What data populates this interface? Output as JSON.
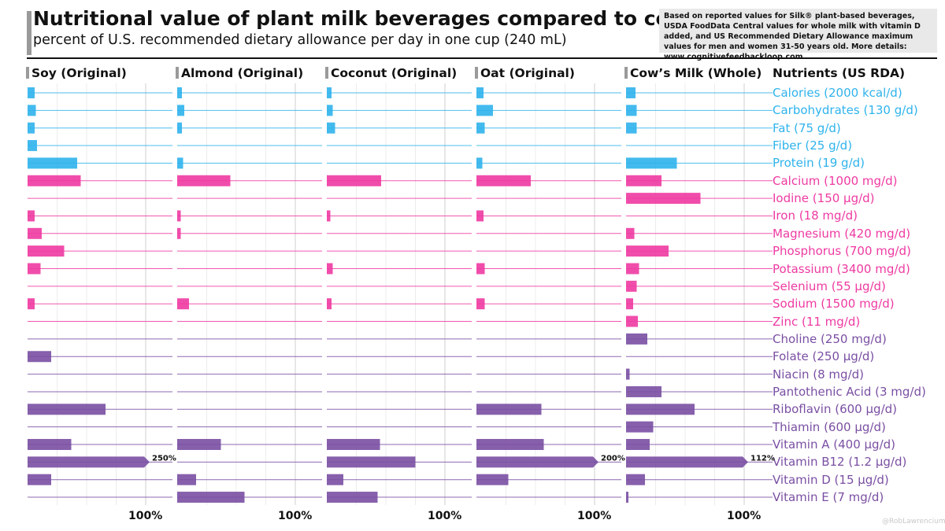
{
  "header": {
    "title": "Nutritional value of plant milk beverages compared to cow’s milk",
    "subtitle": "percent of U.S. recommended dietary allowance per day in one cup (240 mL)",
    "note": "Based on reported values for Silk® plant-based beverages, USDA FoodData Central values for whole milk with vitamin D added, and US Recommended Dietary Allowance maximum values for men and women 31-50 years old. More details: www.cognitivefeedbackloop.com"
  },
  "watermark": "@RobLawrencium",
  "colors": {
    "macro": "#2fb3ec",
    "mineral": "#ee3aa2",
    "vitamin": "#7a4fa3",
    "note_bg": "#e9e9e9"
  },
  "chart_data": {
    "type": "bar",
    "orientation": "horizontal",
    "value_unit": "percent of RDA",
    "tick_label": "100%",
    "nutrients_header": "Nutrients (US RDA)",
    "categories": [
      {
        "label": "Calories (2000 kcal/d)",
        "group": "macro"
      },
      {
        "label": "Carbohydrates (130 g/d)",
        "group": "macro"
      },
      {
        "label": "Fat (75 g/d)",
        "group": "macro"
      },
      {
        "label": "Fiber (25 g/d)",
        "group": "macro"
      },
      {
        "label": "Protein (19 g/d)",
        "group": "macro"
      },
      {
        "label": "Calcium (1000 mg/d)",
        "group": "mineral"
      },
      {
        "label": "Iodine (150 µg/d)",
        "group": "mineral"
      },
      {
        "label": "Iron (18 mg/d)",
        "group": "mineral"
      },
      {
        "label": "Magnesium (420 mg/d)",
        "group": "mineral"
      },
      {
        "label": "Phosphorus (700 mg/d)",
        "group": "mineral"
      },
      {
        "label": "Potassium (3400 mg/d)",
        "group": "mineral"
      },
      {
        "label": "Selenium (55 µg/d)",
        "group": "mineral"
      },
      {
        "label": "Sodium (1500 mg/d)",
        "group": "mineral"
      },
      {
        "label": "Zinc (11 mg/d)",
        "group": "mineral"
      },
      {
        "label": "Choline (250 mg/d)",
        "group": "vitamin"
      },
      {
        "label": "Folate (250 µg/d)",
        "group": "vitamin"
      },
      {
        "label": "Niacin (8 mg/d)",
        "group": "vitamin"
      },
      {
        "label": "Pantothenic Acid (3 mg/d)",
        "group": "vitamin"
      },
      {
        "label": "Riboflavin (600 µg/d)",
        "group": "vitamin"
      },
      {
        "label": "Thiamin (600 µg/d)",
        "group": "vitamin"
      },
      {
        "label": "Vitamin A (400 µg/d)",
        "group": "vitamin"
      },
      {
        "label": "Vitamin B12 (1.2 µg/d)",
        "group": "vitamin"
      },
      {
        "label": "Vitamin D (15 µg/d)",
        "group": "vitamin"
      },
      {
        "label": "Vitamin E (7 mg/d)",
        "group": "vitamin"
      }
    ],
    "series": [
      {
        "name": "Soy (Original)",
        "values": [
          6,
          7,
          6,
          8,
          42,
          45,
          0,
          6,
          12,
          31,
          11,
          0,
          6,
          0,
          0,
          20,
          0,
          0,
          66,
          0,
          37,
          250,
          20,
          0
        ],
        "overflow_label": "250%"
      },
      {
        "name": "Almond (Original)",
        "values": [
          4,
          6,
          4,
          0,
          5,
          45,
          0,
          3,
          3,
          0,
          0,
          0,
          10,
          0,
          0,
          0,
          0,
          0,
          0,
          0,
          37,
          0,
          16,
          57
        ],
        "overflow_label": ""
      },
      {
        "name": "Coconut (Original)",
        "values": [
          4,
          5,
          7,
          0,
          0,
          46,
          0,
          3,
          0,
          0,
          5,
          0,
          4,
          0,
          0,
          0,
          0,
          0,
          0,
          0,
          45,
          75,
          14,
          43
        ],
        "overflow_label": ""
      },
      {
        "name": "Oat (Original)",
        "values": [
          6,
          14,
          7,
          0,
          5,
          46,
          0,
          6,
          0,
          0,
          7,
          0,
          7,
          0,
          0,
          0,
          0,
          0,
          55,
          0,
          57,
          200,
          27,
          0
        ],
        "overflow_label": "200%"
      },
      {
        "name": "Cow’s Milk (Whole)",
        "values": [
          8,
          9,
          9,
          0,
          43,
          30,
          63,
          0,
          7,
          36,
          11,
          9,
          6,
          10,
          18,
          0,
          3,
          30,
          58,
          23,
          20,
          112,
          16,
          2
        ],
        "overflow_label": "112%"
      }
    ]
  }
}
